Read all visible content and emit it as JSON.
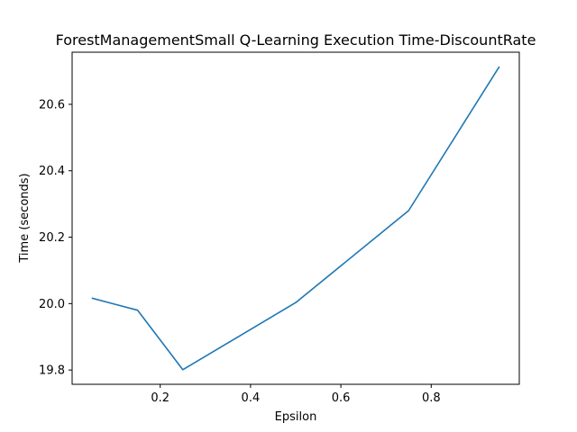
{
  "chart_data": {
    "type": "line",
    "title": "ForestManagementSmall Q-Learning Execution Time-DiscountRate",
    "xlabel": "Epsilon",
    "ylabel": "Time (seconds)",
    "xlim": [
      0.005,
      0.995
    ],
    "ylim": [
      19.757,
      20.757
    ],
    "xticks": [
      0.2,
      0.4,
      0.6,
      0.8
    ],
    "xtick_labels": [
      "0.2",
      "0.4",
      "0.6",
      "0.8"
    ],
    "yticks": [
      19.8,
      20.0,
      20.2,
      20.4,
      20.6
    ],
    "ytick_labels": [
      "19.8",
      "20.0",
      "20.2",
      "20.4",
      "20.6"
    ],
    "grid": false,
    "series": [
      {
        "color": "#1f77b4",
        "x": [
          0.05,
          0.15,
          0.25,
          0.5,
          0.75,
          0.95
        ],
        "y": [
          20.016,
          19.98,
          19.801,
          20.003,
          20.28,
          20.712
        ]
      }
    ]
  }
}
